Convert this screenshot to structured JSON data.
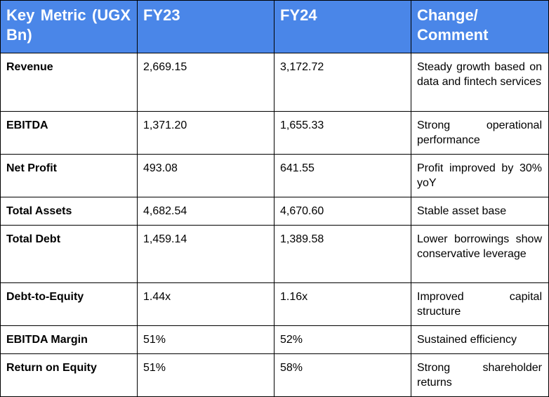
{
  "table": {
    "header": [
      "Key Metric (UGX Bn)",
      "FY23",
      "FY24",
      "Change/ Comment"
    ],
    "rows": [
      [
        "Revenue",
        "2,669.15",
        "3,172.72",
        "Steady growth based on data and fintech services"
      ],
      [
        "EBITDA",
        "1,371.20",
        "1,655.33",
        "Strong operational performance"
      ],
      [
        "Net Profit",
        "493.08",
        "641.55",
        "Profit improved by 30% yoY"
      ],
      [
        "Total Assets",
        "4,682.54",
        "4,670.60",
        "Stable asset base"
      ],
      [
        "Total Debt",
        "1,459.14",
        "1,389.58",
        "Lower borrowings show conservative leverage"
      ],
      [
        "Debt-to-Equity",
        "1.44x",
        "1.16x",
        "Improved capital structure"
      ],
      [
        "EBITDA Margin",
        "51%",
        "52%",
        "Sustained efficiency"
      ],
      [
        "Return on Equity",
        "51%",
        "58%",
        "Strong shareholder returns"
      ]
    ]
  }
}
